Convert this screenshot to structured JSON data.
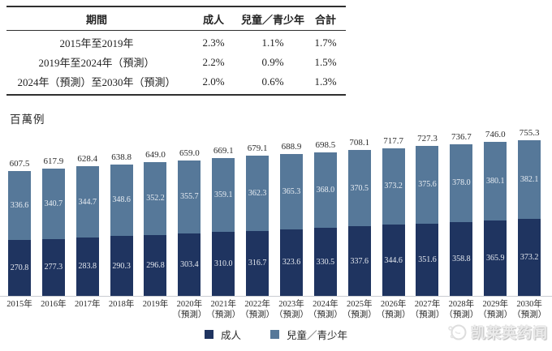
{
  "table": {
    "headers": [
      "期間",
      "成人",
      "兒童／青少年",
      "合計"
    ],
    "rows": [
      {
        "period": "2015年至2019年",
        "adult": "2.3%",
        "child": "1.1%",
        "total": "1.7%"
      },
      {
        "period": "2019年至2024年（預測）",
        "adult": "2.2%",
        "child": "0.9%",
        "total": "1.5%"
      },
      {
        "period": "2024年（預測）至2030年（預測）",
        "adult": "2.0%",
        "child": "0.6%",
        "total": "1.3%"
      }
    ]
  },
  "chart_data": {
    "type": "bar",
    "stacked": true,
    "unit_label": "百萬例",
    "categories": [
      "2015年",
      "2016年",
      "2017年",
      "2018年",
      "2019年",
      "2020年",
      "2021年",
      "2022年",
      "2023年",
      "2024年",
      "2025年",
      "2026年",
      "2027年",
      "2028年",
      "2029年",
      "2030年"
    ],
    "category_sublabels": [
      "",
      "",
      "",
      "",
      "",
      "（預測）",
      "（預測）",
      "（預測）",
      "（預測）",
      "（預測）",
      "（預測）",
      "（預測）",
      "（預測）",
      "（預測）",
      "（預測）",
      "（預測）"
    ],
    "series": [
      {
        "name": "成人",
        "color": "#1f3460",
        "values": [
          270.8,
          277.3,
          283.8,
          290.3,
          296.8,
          303.4,
          310.0,
          316.7,
          323.6,
          330.5,
          337.6,
          344.6,
          351.6,
          358.8,
          365.9,
          373.2
        ]
      },
      {
        "name": "兒童／青少年",
        "color": "#567899",
        "values": [
          336.6,
          340.7,
          344.7,
          348.6,
          352.2,
          355.7,
          359.1,
          362.3,
          365.3,
          368.0,
          370.5,
          373.2,
          375.6,
          378.0,
          380.1,
          382.1
        ]
      }
    ],
    "totals": [
      607.5,
      617.9,
      628.4,
      638.8,
      649.0,
      659.0,
      669.1,
      679.1,
      688.9,
      698.5,
      708.1,
      717.7,
      727.3,
      736.7,
      746.0,
      755.3
    ],
    "legend": [
      "成人",
      "兒童／青少年"
    ],
    "legend_position": "bottom",
    "grid": false,
    "ylim": [
      0,
      760
    ]
  },
  "watermark": {
    "text": "凯莱英药闻"
  }
}
